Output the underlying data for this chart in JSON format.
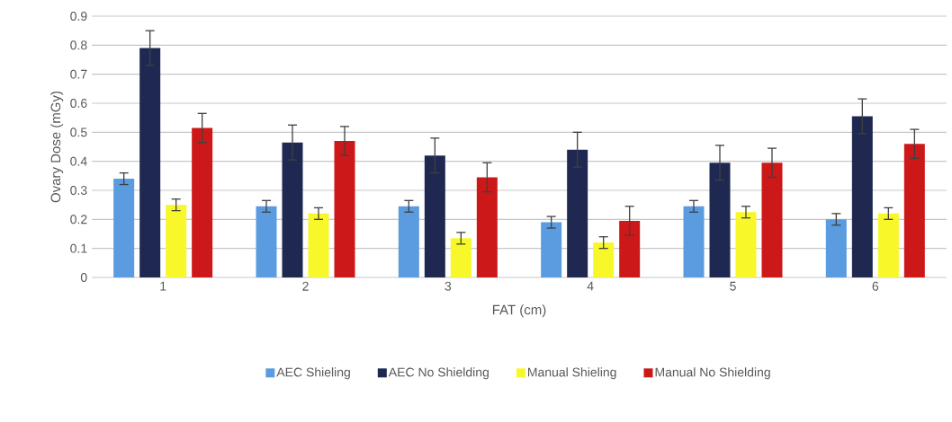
{
  "chart_data": {
    "type": "bar",
    "xlabel": "FAT (cm)",
    "ylabel": "Ovary Dose (mGy)",
    "categories": [
      "1",
      "2",
      "3",
      "4",
      "5",
      "6"
    ],
    "series": [
      {
        "name": "AEC Shieling",
        "color": "#5b9be0",
        "values": [
          0.34,
          0.245,
          0.245,
          0.19,
          0.245,
          0.2
        ],
        "errors": [
          0.02,
          0.02,
          0.02,
          0.02,
          0.02,
          0.02
        ]
      },
      {
        "name": "AEC No Shielding",
        "color": "#1f2851",
        "values": [
          0.79,
          0.465,
          0.42,
          0.44,
          0.395,
          0.555
        ],
        "errors": [
          0.06,
          0.06,
          0.06,
          0.06,
          0.06,
          0.06
        ]
      },
      {
        "name": "Manual Shieling",
        "color": "#f7f72a",
        "values": [
          0.25,
          0.22,
          0.135,
          0.12,
          0.225,
          0.22
        ],
        "errors": [
          0.02,
          0.02,
          0.02,
          0.02,
          0.02,
          0.02
        ]
      },
      {
        "name": "Manual No Shielding",
        "color": "#cc1818",
        "values": [
          0.515,
          0.47,
          0.345,
          0.195,
          0.395,
          0.46
        ],
        "errors": [
          0.05,
          0.05,
          0.05,
          0.05,
          0.05,
          0.05
        ]
      }
    ],
    "ylim": [
      0,
      0.9
    ],
    "yticks": [
      0,
      0.1,
      0.2,
      0.3,
      0.4,
      0.5,
      0.6,
      0.7,
      0.8,
      0.9
    ],
    "grid": "y",
    "legend": "bottom"
  }
}
